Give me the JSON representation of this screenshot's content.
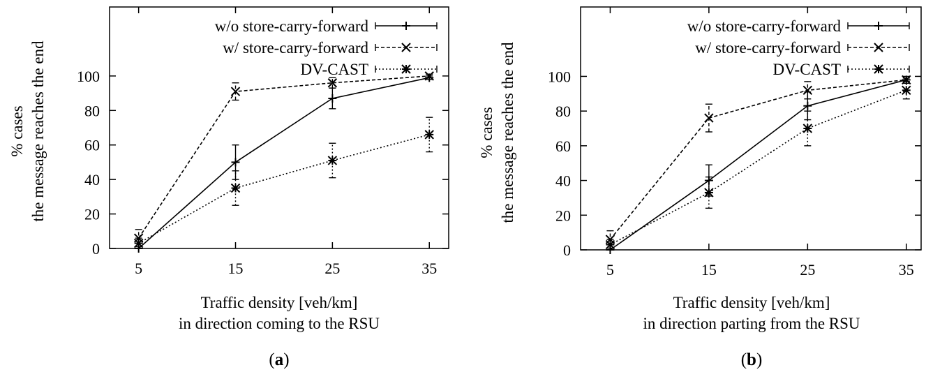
{
  "chart_data": [
    {
      "type": "line",
      "panel_label": "a",
      "ylabel_lines": [
        "% cases",
        "the message reaches the end"
      ],
      "xlabel_lines": [
        "Traffic density [veh/km]",
        "in direction coming to the RSU"
      ],
      "x": [
        5,
        15,
        25,
        35
      ],
      "xlim": [
        2,
        37
      ],
      "ylim": [
        0,
        140
      ],
      "xticks": [
        "5",
        "15",
        "25",
        "35"
      ],
      "yticks": [
        "0",
        "20",
        "40",
        "60",
        "80",
        "100"
      ],
      "legend_position": "top-right",
      "series": [
        {
          "name": "w/o store-carry-forward",
          "style": "solid",
          "marker": "plus",
          "values": [
            0,
            50,
            87,
            99
          ],
          "err": [
            0,
            10,
            6,
            1
          ]
        },
        {
          "name": "w/ store-carry-forward",
          "style": "dashed",
          "marker": "x",
          "values": [
            6,
            91,
            96,
            100
          ],
          "err": [
            5,
            5,
            3,
            1
          ]
        },
        {
          "name": "DV-CAST",
          "style": "dotted",
          "marker": "star",
          "values": [
            3,
            35,
            51,
            66
          ],
          "err": [
            3,
            10,
            10,
            10
          ]
        }
      ]
    },
    {
      "type": "line",
      "panel_label": "b",
      "ylabel_lines": [
        "% cases",
        "the message reaches the end"
      ],
      "xlabel_lines": [
        "Traffic density [veh/km]",
        "in direction parting from the RSU"
      ],
      "x": [
        5,
        15,
        25,
        35
      ],
      "xlim": [
        2,
        36.5
      ],
      "ylim": [
        0,
        140
      ],
      "xticks": [
        "5",
        "15",
        "25",
        "35"
      ],
      "yticks": [
        "0",
        "20",
        "40",
        "60",
        "80",
        "100"
      ],
      "legend_position": "top-right",
      "series": [
        {
          "name": "w/o store-carry-forward",
          "style": "solid",
          "marker": "plus",
          "values": [
            0,
            40,
            83,
            98
          ],
          "err": [
            0,
            9,
            8,
            2
          ]
        },
        {
          "name": "w/ store-carry-forward",
          "style": "dashed",
          "marker": "x",
          "values": [
            6,
            76,
            92,
            98
          ],
          "err": [
            5,
            8,
            5,
            1
          ]
        },
        {
          "name": "DV-CAST",
          "style": "dotted",
          "marker": "star",
          "values": [
            3,
            33,
            70,
            92
          ],
          "err": [
            3,
            9,
            10,
            5
          ]
        }
      ]
    }
  ]
}
